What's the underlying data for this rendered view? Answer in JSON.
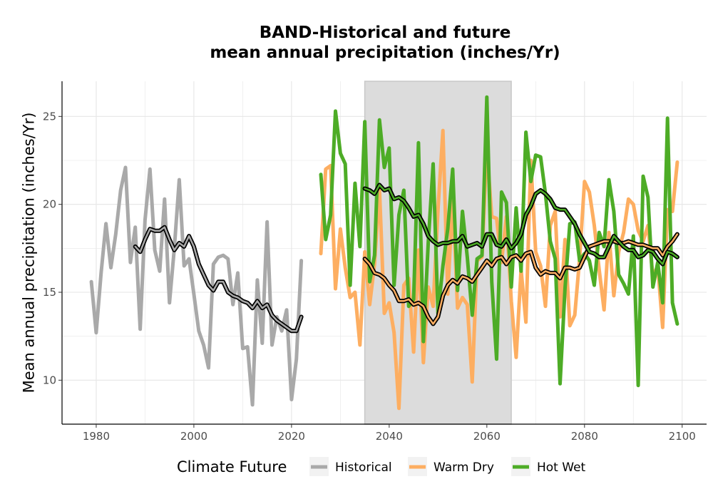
{
  "chart_data": {
    "type": "line",
    "title_line1": "BAND-Historical and future",
    "title_line2": "mean annual precipitation (inches/Yr)",
    "xlabel": "",
    "ylabel": "Mean annual precipitation (inches/Yr)",
    "xlim": [
      1973,
      2105
    ],
    "ylim": [
      7.5,
      27
    ],
    "x_ticks": [
      1980,
      2000,
      2020,
      2040,
      2060,
      2080,
      2100
    ],
    "y_ticks": [
      10,
      15,
      20,
      25
    ],
    "grid": true,
    "shaded_period": [
      2035,
      2065
    ],
    "colors": {
      "historical": "#a9a9a9",
      "warm_dry": "#fdae61",
      "hot_wet": "#4dac26",
      "smooth_outline": "#000000",
      "shade": "#dcdcdc",
      "grid": "#e6e6e6"
    },
    "legend": {
      "title": "Climate Future",
      "position": "bottom",
      "items": [
        {
          "label": "Historical",
          "key": "historical"
        },
        {
          "label": "Warm Dry",
          "key": "warm_dry"
        },
        {
          "label": "Hot Wet",
          "key": "hot_wet"
        }
      ]
    },
    "series": [
      {
        "key": "historical",
        "x": [
          1979,
          1980,
          1981,
          1982,
          1983,
          1984,
          1985,
          1986,
          1987,
          1988,
          1989,
          1990,
          1991,
          1992,
          1993,
          1994,
          1995,
          1996,
          1997,
          1998,
          1999,
          2000,
          2001,
          2002,
          2003,
          2004,
          2005,
          2006,
          2007,
          2008,
          2009,
          2010,
          2011,
          2012,
          2013,
          2014,
          2015,
          2016,
          2017,
          2018,
          2019,
          2020,
          2021,
          2022
        ],
        "y": [
          15.6,
          12.7,
          16.1,
          18.9,
          16.4,
          18.3,
          20.8,
          22.1,
          16.7,
          18.7,
          12.9,
          19.1,
          22.0,
          17.4,
          16.2,
          20.3,
          14.4,
          17.5,
          21.4,
          16.5,
          16.9,
          14.9,
          12.8,
          12.0,
          10.7,
          16.6,
          17.0,
          17.1,
          16.9,
          14.3,
          16.1,
          11.8,
          11.9,
          8.6,
          15.7,
          12.1,
          19.0,
          12.0,
          13.6,
          12.8,
          14.0,
          8.9,
          11.2,
          16.8
        ]
      },
      {
        "key": "warm_dry",
        "x": [
          2026,
          2027,
          2028,
          2029,
          2030,
          2031,
          2032,
          2033,
          2034,
          2035,
          2036,
          2037,
          2038,
          2039,
          2040,
          2041,
          2042,
          2043,
          2044,
          2045,
          2046,
          2047,
          2048,
          2049,
          2050,
          2051,
          2052,
          2053,
          2054,
          2055,
          2056,
          2057,
          2058,
          2059,
          2060,
          2061,
          2062,
          2063,
          2064,
          2065,
          2066,
          2067,
          2068,
          2069,
          2070,
          2071,
          2072,
          2073,
          2074,
          2075,
          2076,
          2077,
          2078,
          2079,
          2080,
          2081,
          2082,
          2083,
          2084,
          2085,
          2086,
          2087,
          2088,
          2089,
          2090,
          2091,
          2092,
          2093,
          2094,
          2095,
          2096,
          2097,
          2098,
          2099
        ],
        "y": [
          17.2,
          22.0,
          22.2,
          15.2,
          18.6,
          16.4,
          14.7,
          15.0,
          12.0,
          17.3,
          14.3,
          16.6,
          20.9,
          13.8,
          14.4,
          12.7,
          8.4,
          15.4,
          15.8,
          11.6,
          17.4,
          11.0,
          15.3,
          14.2,
          19.7,
          24.2,
          14.9,
          20.4,
          14.1,
          14.7,
          14.3,
          9.9,
          16.8,
          17.0,
          23.2,
          19.3,
          19.2,
          16.7,
          19.3,
          14.5,
          11.3,
          16.3,
          13.3,
          22.5,
          17.3,
          16.5,
          14.2,
          18.8,
          19.6,
          13.6,
          18.0,
          13.1,
          13.7,
          16.9,
          21.3,
          20.7,
          18.8,
          16.3,
          14.0,
          18.4,
          14.8,
          17.3,
          18.4,
          20.3,
          20.0,
          18.5,
          17.9,
          18.8,
          15.9,
          16.5,
          13.0,
          19.7,
          19.6,
          22.4
        ]
      },
      {
        "key": "hot_wet",
        "x": [
          2026,
          2027,
          2028,
          2029,
          2030,
          2031,
          2032,
          2033,
          2034,
          2035,
          2036,
          2037,
          2038,
          2039,
          2040,
          2041,
          2042,
          2043,
          2044,
          2045,
          2046,
          2047,
          2048,
          2049,
          2050,
          2051,
          2052,
          2053,
          2054,
          2055,
          2056,
          2057,
          2058,
          2059,
          2060,
          2061,
          2062,
          2063,
          2064,
          2065,
          2066,
          2067,
          2068,
          2069,
          2070,
          2071,
          2072,
          2073,
          2074,
          2075,
          2076,
          2077,
          2078,
          2079,
          2080,
          2081,
          2082,
          2083,
          2084,
          2085,
          2086,
          2087,
          2088,
          2089,
          2090,
          2091,
          2092,
          2093,
          2094,
          2095,
          2096,
          2097,
          2098,
          2099
        ],
        "y": [
          21.7,
          18.0,
          19.4,
          25.3,
          22.9,
          22.3,
          15.4,
          21.2,
          17.6,
          24.7,
          15.6,
          17.1,
          24.8,
          22.1,
          23.2,
          15.4,
          19.4,
          20.8,
          14.2,
          14.6,
          23.5,
          12.2,
          17.8,
          22.3,
          13.8,
          16.5,
          18.6,
          22.0,
          15.1,
          19.6,
          17.0,
          13.7,
          16.9,
          17.1,
          26.1,
          15.6,
          11.2,
          20.7,
          20.1,
          15.3,
          19.8,
          16.2,
          24.1,
          21.3,
          22.8,
          22.7,
          20.6,
          17.9,
          16.9,
          9.8,
          15.2,
          18.9,
          19.0,
          16.8,
          17.2,
          16.8,
          15.4,
          18.4,
          17.6,
          21.4,
          19.6,
          16.0,
          15.5,
          14.9,
          18.2,
          9.7,
          21.6,
          20.4,
          15.3,
          16.7,
          14.4,
          24.9,
          14.4,
          13.2
        ]
      },
      {
        "key": "historical_smooth",
        "x": [
          1988,
          1989,
          1990,
          1991,
          1992,
          1993,
          1994,
          1995,
          1996,
          1997,
          1998,
          1999,
          2000,
          2001,
          2002,
          2003,
          2004,
          2005,
          2006,
          2007,
          2008,
          2009,
          2010,
          2011,
          2012,
          2013,
          2014,
          2015,
          2016,
          2017,
          2018,
          2019,
          2020,
          2021,
          2022
        ],
        "y": [
          17.6,
          17.3,
          18.0,
          18.6,
          18.5,
          18.5,
          18.7,
          18.0,
          17.4,
          17.8,
          17.6,
          18.2,
          17.6,
          16.6,
          16.0,
          15.4,
          15.1,
          15.6,
          15.6,
          15.0,
          14.8,
          14.7,
          14.5,
          14.4,
          14.1,
          14.5,
          14.1,
          14.3,
          13.7,
          13.4,
          13.2,
          13.0,
          12.8,
          12.8,
          13.6
        ]
      },
      {
        "key": "warm_dry_smooth",
        "x": [
          2035,
          2036,
          2037,
          2038,
          2039,
          2040,
          2041,
          2042,
          2043,
          2044,
          2045,
          2046,
          2047,
          2048,
          2049,
          2050,
          2051,
          2052,
          2053,
          2054,
          2055,
          2056,
          2057,
          2058,
          2059,
          2060,
          2061,
          2062,
          2063,
          2064,
          2065,
          2066,
          2067,
          2068,
          2069,
          2070,
          2071,
          2072,
          2073,
          2074,
          2075,
          2076,
          2077,
          2078,
          2079,
          2080,
          2081,
          2082,
          2083,
          2084,
          2085,
          2086,
          2087,
          2088,
          2089,
          2090,
          2091,
          2092,
          2093,
          2094,
          2095,
          2096,
          2097,
          2098,
          2099
        ],
        "y": [
          16.9,
          16.6,
          16.1,
          16.0,
          15.8,
          15.4,
          15.1,
          14.5,
          14.5,
          14.6,
          14.3,
          14.4,
          14.2,
          13.6,
          13.2,
          13.6,
          14.8,
          15.4,
          15.7,
          15.5,
          15.9,
          15.8,
          15.6,
          16.0,
          16.4,
          16.8,
          16.5,
          16.9,
          17.0,
          16.6,
          17.0,
          17.1,
          16.8,
          17.2,
          17.3,
          16.4,
          16.0,
          16.2,
          16.1,
          16.1,
          15.8,
          16.4,
          16.4,
          16.3,
          16.4,
          17.0,
          17.6,
          17.7,
          17.8,
          17.9,
          17.9,
          17.9,
          17.8,
          17.8,
          17.9,
          17.8,
          17.7,
          17.7,
          17.6,
          17.5,
          17.5,
          17.1,
          17.6,
          17.9,
          18.3
        ]
      },
      {
        "key": "hot_wet_smooth",
        "x": [
          2035,
          2036,
          2037,
          2038,
          2039,
          2040,
          2041,
          2042,
          2043,
          2044,
          2045,
          2046,
          2047,
          2048,
          2049,
          2050,
          2051,
          2052,
          2053,
          2054,
          2055,
          2056,
          2057,
          2058,
          2059,
          2060,
          2061,
          2062,
          2063,
          2064,
          2065,
          2066,
          2067,
          2068,
          2069,
          2070,
          2071,
          2072,
          2073,
          2074,
          2075,
          2076,
          2077,
          2078,
          2079,
          2080,
          2081,
          2082,
          2083,
          2084,
          2085,
          2086,
          2087,
          2088,
          2089,
          2090,
          2091,
          2092,
          2093,
          2094,
          2095,
          2096,
          2097,
          2098,
          2099
        ],
        "y": [
          20.9,
          20.8,
          20.6,
          21.1,
          20.8,
          20.9,
          20.3,
          20.4,
          20.2,
          19.8,
          19.3,
          19.4,
          18.9,
          18.2,
          17.9,
          17.7,
          17.8,
          17.8,
          17.9,
          17.9,
          18.2,
          17.6,
          17.7,
          17.8,
          17.6,
          18.3,
          18.3,
          17.7,
          17.6,
          18.0,
          17.5,
          17.8,
          18.3,
          19.4,
          19.9,
          20.6,
          20.8,
          20.6,
          20.3,
          19.8,
          19.7,
          19.7,
          19.3,
          18.9,
          18.3,
          17.8,
          17.3,
          17.2,
          17.0,
          17.0,
          17.6,
          18.2,
          17.9,
          17.6,
          17.4,
          17.4,
          17.0,
          17.1,
          17.4,
          17.3,
          16.9,
          16.6,
          17.3,
          17.2,
          17.0
        ]
      }
    ]
  }
}
